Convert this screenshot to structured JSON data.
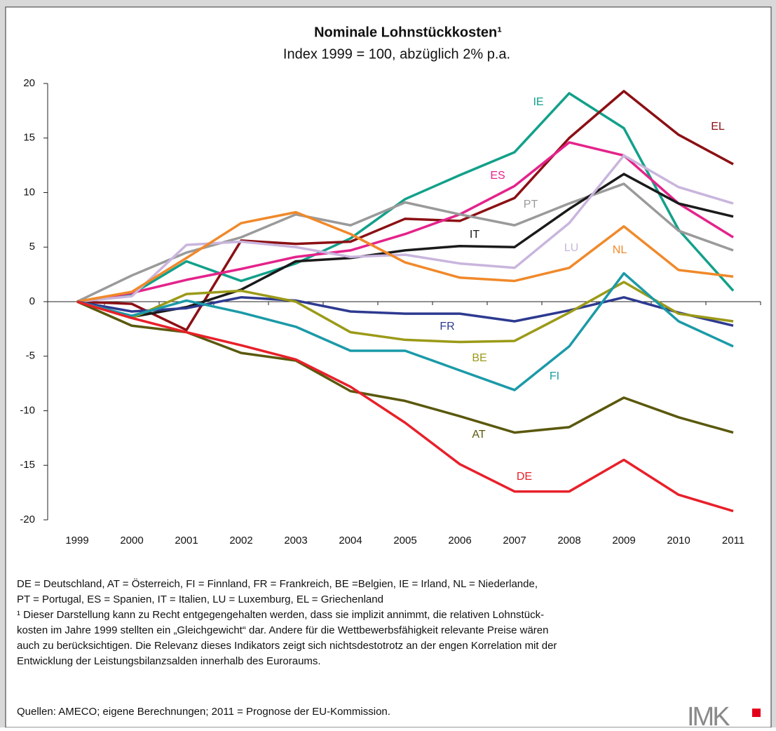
{
  "chart_data": {
    "type": "line",
    "title": "Nominale Lohnstückkosten¹",
    "subtitle": "Index 1999 = 100, abzüglich 2% p.a.",
    "categories": [
      "1999",
      "2000",
      "2001",
      "2002",
      "2003",
      "2004",
      "2005",
      "2006",
      "2007",
      "2008",
      "2009",
      "2010",
      "2011"
    ],
    "ylim": [
      -20,
      20
    ],
    "yticks": [
      -20,
      -15,
      -10,
      -5,
      0,
      5,
      10,
      15,
      20
    ],
    "series": [
      {
        "name": "IE",
        "color": "#12a08a",
        "values": [
          0,
          0.7,
          3.7,
          1.9,
          3.5,
          5.8,
          9.4,
          11.6,
          13.7,
          19.1,
          15.9,
          6.6,
          1.0
        ]
      },
      {
        "name": "EL",
        "color": "#8b1014",
        "values": [
          0,
          -0.2,
          -2.6,
          5.6,
          5.3,
          5.5,
          7.6,
          7.4,
          9.5,
          15.0,
          19.3,
          15.3,
          12.6
        ]
      },
      {
        "name": "ES",
        "color": "#e4238b",
        "values": [
          0,
          0.8,
          2.0,
          3.0,
          4.1,
          4.7,
          6.2,
          8.0,
          10.6,
          14.6,
          13.4,
          9.0,
          5.9
        ]
      },
      {
        "name": "PT",
        "color": "#9a9a9a",
        "values": [
          0,
          2.4,
          4.5,
          5.9,
          8.0,
          7.0,
          9.1,
          8.0,
          7.0,
          9.0,
          10.8,
          6.5,
          4.7
        ]
      },
      {
        "name": "IT",
        "color": "#1a1a1a",
        "values": [
          0,
          -1.4,
          -0.5,
          1.1,
          3.7,
          4.0,
          4.7,
          5.1,
          5.0,
          8.5,
          11.7,
          9.0,
          7.8
        ]
      },
      {
        "name": "LU",
        "color": "#c9b5dd",
        "values": [
          0,
          0.5,
          5.2,
          5.5,
          5.0,
          4.1,
          4.3,
          3.5,
          3.1,
          7.2,
          13.4,
          10.5,
          9.0
        ]
      },
      {
        "name": "NL",
        "color": "#f0892a",
        "values": [
          0,
          0.9,
          4.0,
          7.2,
          8.2,
          6.2,
          3.6,
          2.2,
          1.9,
          3.1,
          6.9,
          2.9,
          2.3
        ]
      },
      {
        "name": "FR",
        "color": "#2d3a90",
        "values": [
          0,
          -0.9,
          -0.6,
          0.4,
          0.1,
          -0.9,
          -1.1,
          -1.1,
          -1.8,
          -0.8,
          0.4,
          -1.0,
          -2.2
        ]
      },
      {
        "name": "BE",
        "color": "#9b9a18",
        "values": [
          0,
          -1.5,
          0.7,
          1.0,
          0.0,
          -2.8,
          -3.5,
          -3.7,
          -3.6,
          -1.0,
          1.8,
          -1.1,
          -1.8
        ]
      },
      {
        "name": "FI",
        "color": "#1b9aa8",
        "values": [
          0,
          -1.3,
          0.1,
          -1.0,
          -2.3,
          -4.5,
          -4.5,
          -6.3,
          -8.1,
          -4.1,
          2.6,
          -1.8,
          -4.1
        ]
      },
      {
        "name": "AT",
        "color": "#5a580c",
        "values": [
          0,
          -2.2,
          -2.8,
          -4.7,
          -5.4,
          -8.2,
          -9.1,
          -10.5,
          -12.0,
          -11.5,
          -8.8,
          -10.6,
          -12.0
        ]
      },
      {
        "name": "DE",
        "color": "#e8202a",
        "values": [
          0,
          -1.5,
          -2.8,
          -4.0,
          -5.3,
          -7.8,
          -11.1,
          -14.9,
          -17.4,
          -17.4,
          -14.5,
          -17.7,
          -19.2
        ]
      }
    ],
    "notes": [
      "DE = Deutschland, AT = Österreich, FI = Finnland, FR = Frankreich,  BE =Belgien, IE = Irland, NL = Niederlande,",
      "PT = Portugal, ES = Spanien, IT = Italien, LU = Luxemburg,  EL = Griechenland",
      "¹ Dieser Darstellung kann zu Recht entgegengehalten werden, dass sie implizit annimmt, die relativen Lohnstück-",
      "kosten im Jahre 1999 stellten ein „Gleichgewicht“ dar. Andere für die Wettbewerbsfähigkeit relevante Preise wären",
      "auch zu berücksichtigen. Die Relevanz dieses Indikators zeigt sich nichtsdestotrotz an der engen Korrelation mit der",
      "Entwicklung der Leistungsbilanzsalden innerhalb des Euroraums."
    ],
    "source": "Quellen: AMECO; eigene Berechnungen; 2011 = Prognose der EU-Kommission.",
    "logo": "IMK"
  }
}
